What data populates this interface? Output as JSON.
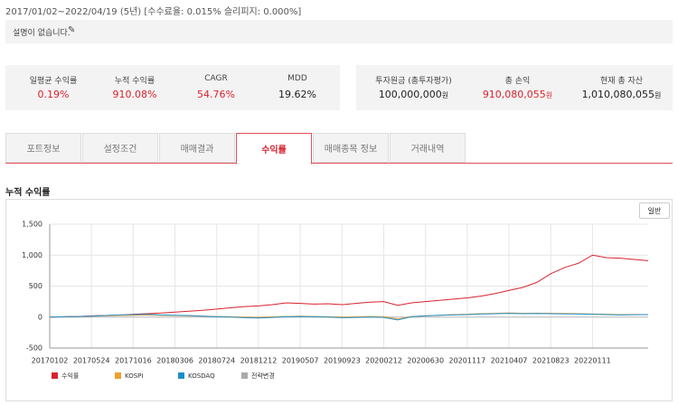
{
  "header": {
    "period": "2017/01/02~2022/04/19 (5년) [수수료율: 0.015% 슬리피지: 0.000%]",
    "description": "설명이 없습니다."
  },
  "stats_left": [
    {
      "label": "일평균 수익률",
      "value": "0.19%",
      "color": "#d9232e"
    },
    {
      "label": "누적 수익률",
      "value": "910.08%",
      "color": "#d9232e"
    },
    {
      "label": "CAGR",
      "value": "54.76%",
      "color": "#d9232e"
    },
    {
      "label": "MDD",
      "value": "19.62%",
      "color": "#222"
    }
  ],
  "stats_right": [
    {
      "label": "투자원금 (총투자평가)",
      "value": "100,000,000",
      "unit": "원",
      "color": "#222"
    },
    {
      "label": "총 손익",
      "value": "910,080,055",
      "unit": "원",
      "color": "#d9232e"
    },
    {
      "label": "현재 총 자산",
      "value": "1,010,080,055",
      "unit": "원",
      "color": "#222"
    }
  ],
  "tabs": {
    "items": [
      "포트정보",
      "설정조건",
      "매매결과",
      "수익률",
      "매매종목 정보",
      "거래내역"
    ],
    "active": 3
  },
  "section_title": "누적 수익률",
  "button": "일반",
  "chart_data": {
    "type": "line",
    "categories": [
      "20170102",
      null,
      null,
      "20170524",
      null,
      null,
      "20171016",
      null,
      null,
      "20180306",
      null,
      null,
      "20180724",
      null,
      null,
      "20181212",
      null,
      null,
      "20190507",
      null,
      null,
      "20190923",
      null,
      null,
      "20200212",
      null,
      null,
      "20200630",
      null,
      null,
      "20201117",
      null,
      null,
      "20210407",
      null,
      null,
      "20210823",
      null,
      null,
      "20220111",
      null,
      null,
      null,
      null
    ],
    "ylim": [
      -500,
      1500
    ],
    "yticks": [
      -500,
      0,
      500,
      {
        "value": 1000,
        "label": "1,000"
      },
      {
        "value": 1500,
        "label": "1,500"
      }
    ],
    "grid": true,
    "series": [
      {
        "name": "수익률",
        "color": "#d9232e",
        "values": [
          0,
          5,
          10,
          20,
          25,
          30,
          45,
          55,
          65,
          80,
          95,
          110,
          130,
          150,
          170,
          180,
          200,
          230,
          220,
          210,
          215,
          200,
          220,
          240,
          250,
          190,
          230,
          250,
          270,
          290,
          310,
          340,
          380,
          430,
          480,
          560,
          700,
          800,
          870,
          1000,
          960,
          950,
          930,
          910
        ]
      },
      {
        "name": "KOSPI",
        "color": "#f0a030",
        "values": [
          0,
          5,
          10,
          15,
          20,
          25,
          30,
          35,
          30,
          25,
          20,
          15,
          10,
          5,
          0,
          -5,
          5,
          10,
          15,
          10,
          5,
          0,
          5,
          10,
          5,
          -30,
          10,
          20,
          30,
          40,
          45,
          55,
          60,
          65,
          60,
          62,
          60,
          58,
          55,
          50,
          45,
          40,
          42,
          40
        ]
      },
      {
        "name": "KOSDAQ",
        "color": "#1f8fc9",
        "values": [
          0,
          5,
          10,
          15,
          25,
          35,
          40,
          45,
          35,
          30,
          25,
          15,
          5,
          0,
          -10,
          -15,
          -5,
          5,
          10,
          5,
          0,
          -10,
          -5,
          0,
          -5,
          -45,
          5,
          20,
          30,
          35,
          40,
          50,
          55,
          60,
          55,
          58,
          55,
          52,
          50,
          45,
          40,
          35,
          38,
          40
        ]
      },
      {
        "name": "전략변경",
        "color": "#aaaaaa"
      }
    ]
  }
}
